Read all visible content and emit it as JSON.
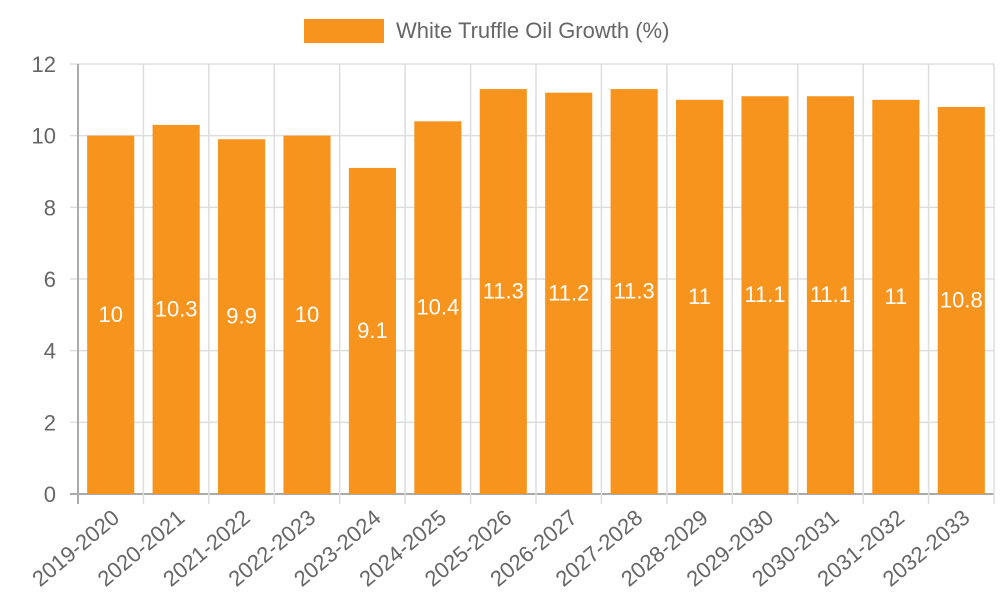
{
  "legend": {
    "label": "White Truffle Oil Growth (%)",
    "color": "#f7941d"
  },
  "colors": {
    "bar": "#f7941d",
    "grid": "#dddddd",
    "axis": "#aaaaaa",
    "tick_text": "#666666",
    "data_label": "#ffffff"
  },
  "chart_data": {
    "type": "bar",
    "title": "",
    "xlabel": "",
    "ylabel": "",
    "ylim": [
      0,
      12
    ],
    "yticks": [
      0,
      2,
      4,
      6,
      8,
      10,
      12
    ],
    "grid": true,
    "legend_position": "top",
    "categories": [
      "2019-2020",
      "2020-2021",
      "2021-2022",
      "2022-2023",
      "2023-2024",
      "2024-2025",
      "2025-2026",
      "2026-2027",
      "2027-2028",
      "2028-2029",
      "2029-2030",
      "2030-2031",
      "2031-2032",
      "2032-2033"
    ],
    "series": [
      {
        "name": "White Truffle Oil Growth (%)",
        "values": [
          10,
          10.3,
          9.9,
          10,
          9.1,
          10.4,
          11.3,
          11.2,
          11.3,
          11,
          11.1,
          11.1,
          11,
          10.8
        ]
      }
    ],
    "data_labels": [
      "10",
      "10.3",
      "9.9",
      "10",
      "9.1",
      "10.4",
      "11.3",
      "11.2",
      "11.3",
      "11",
      "11.1",
      "11.1",
      "11",
      "10.8"
    ]
  }
}
